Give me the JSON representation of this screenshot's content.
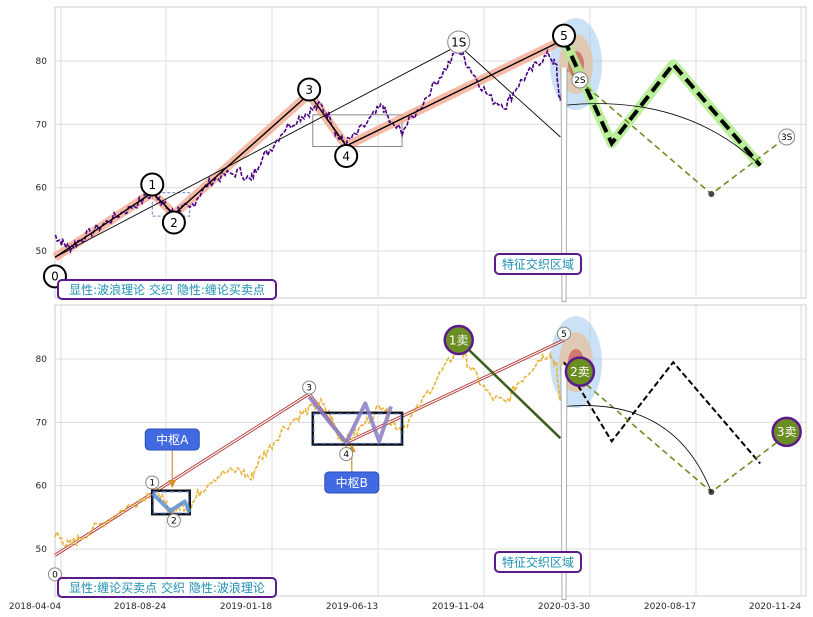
{
  "colors": {
    "price_top": "#4b0082",
    "price_bottom": "#e8b33a",
    "wave_band": "#f3a48a",
    "projection_green": "#b3ee8f",
    "dash_olive": "#6b8e23",
    "purple_border": "#5b1a8c",
    "label_teal": "#1f8fb2",
    "zhongshu_label_bg": "#4169e1",
    "sell_circle": "#6b8e23",
    "target_blue": "#9fc9ee",
    "target_tan": "#e3c3a3",
    "target_red": "#c95454"
  },
  "chart_data": [
    {
      "type": "line",
      "panel": "top",
      "title": "",
      "xlabel": "",
      "ylabel": "",
      "ylim": [
        43,
        88
      ],
      "y_ticks": [
        50,
        60,
        70,
        80
      ],
      "x_tick_labels": [
        "2018-04-04",
        "2018-08-24",
        "2019-01-18",
        "2019-06-13",
        "2019-11-04",
        "2020-03-30",
        "2020-08-17",
        "2020-11-24"
      ],
      "series": [
        {
          "kind": "price",
          "points": [
            [
              "2018-05-01",
              52.5
            ],
            [
              "2018-05-10",
              51.5
            ],
            [
              "2018-05-20",
              50.5
            ],
            [
              "2018-06-01",
              51.5
            ],
            [
              "2018-06-20",
              53
            ],
            [
              "2018-07-10",
              54.5
            ],
            [
              "2018-07-30",
              56
            ],
            [
              "2018-08-20",
              57.5
            ],
            [
              "2018-09-10",
              59
            ],
            [
              "2018-09-20",
              58.5
            ],
            [
              "2018-09-28",
              57
            ],
            [
              "2018-10-10",
              55.8
            ],
            [
              "2018-10-20",
              57
            ],
            [
              "2018-11-01",
              56.5
            ],
            [
              "2018-11-15",
              59
            ],
            [
              "2018-12-01",
              61
            ],
            [
              "2018-12-20",
              62
            ],
            [
              "2019-01-10",
              62.5
            ],
            [
              "2019-01-25",
              61
            ],
            [
              "2019-02-05",
              64
            ],
            [
              "2019-02-20",
              66
            ],
            [
              "2019-03-10",
              69
            ],
            [
              "2019-04-01",
              71
            ],
            [
              "2019-04-15",
              72
            ],
            [
              "2019-05-01",
              73
            ],
            [
              "2019-05-15",
              71
            ],
            [
              "2019-05-25",
              68
            ],
            [
              "2019-06-05",
              67
            ],
            [
              "2019-06-20",
              68.5
            ],
            [
              "2019-07-10",
              71
            ],
            [
              "2019-07-25",
              73
            ],
            [
              "2019-08-05",
              70
            ],
            [
              "2019-08-20",
              69
            ],
            [
              "2019-09-10",
              72
            ],
            [
              "2019-10-01",
              76
            ],
            [
              "2019-10-20",
              79
            ],
            [
              "2019-11-05",
              82
            ],
            [
              "2019-11-15",
              80
            ],
            [
              "2019-12-01",
              77
            ],
            [
              "2019-12-20",
              74
            ],
            [
              "2020-01-10",
              73
            ],
            [
              "2020-01-25",
              76
            ],
            [
              "2020-02-10",
              78
            ],
            [
              "2020-02-25",
              80
            ],
            [
              "2020-03-10",
              81
            ],
            [
              "2020-03-20",
              79
            ],
            [
              "2020-03-25",
              73
            ],
            [
              "2020-03-30",
              78
            ]
          ]
        },
        {
          "kind": "wave",
          "points": [
            [
              "2018-05-01",
              49
            ],
            [
              "2018-09-10",
              59.2
            ],
            [
              "2018-10-10",
              55.8
            ],
            [
              "2019-04-15",
              74.8
            ],
            [
              "2019-06-05",
              66.6
            ],
            [
              "2020-03-30",
              83.4
            ]
          ]
        },
        {
          "kind": "projection",
          "points": [
            [
              "2020-03-30",
              83.4
            ],
            [
              "2020-06-01",
              67
            ],
            [
              "2020-08-20",
              79.5
            ],
            [
              "2020-11-10",
              63.5
            ]
          ]
        },
        {
          "kind": "dashed-olive",
          "points": [
            [
              "2020-03-30",
              79
            ],
            [
              "2020-09-25",
              59
            ],
            [
              "2020-12-05",
              68
            ]
          ]
        },
        {
          "kind": "thin-black",
          "points": [
            [
              "2018-05-01",
              49
            ],
            [
              "2019-11-05",
              82.5
            ],
            [
              "2020-03-25",
              68
            ]
          ]
        }
      ],
      "markers": [
        {
          "label": "0",
          "x": "2018-05-01",
          "y": 46
        },
        {
          "label": "1",
          "x": "2018-09-10",
          "y": 60.5
        },
        {
          "label": "2",
          "x": "2018-10-10",
          "y": 54.5
        },
        {
          "label": "3",
          "x": "2019-04-15",
          "y": 75.5
        },
        {
          "label": "4",
          "x": "2019-06-05",
          "y": 65
        },
        {
          "label": "5",
          "x": "2020-03-30",
          "y": 84
        },
        {
          "label": "1S",
          "x": "2019-11-05",
          "y": 83
        },
        {
          "label": "2S",
          "x": "2020-04-20",
          "y": 77
        },
        {
          "label": "3S",
          "x": "2020-12-05",
          "y": 68
        }
      ],
      "legend_text": "显性:波浪理论 交织 隐性:缠论买卖点",
      "region_label": "特征交织区域"
    },
    {
      "type": "line",
      "panel": "bottom",
      "title": "",
      "xlabel": "",
      "ylabel": "",
      "ylim": [
        43,
        88
      ],
      "y_ticks": [
        50,
        60,
        70,
        80
      ],
      "x_tick_labels": [
        "2018-04-04",
        "2018-08-24",
        "2019-01-18",
        "2019-06-13",
        "2019-11-04",
        "2020-03-30",
        "2020-08-17",
        "2020-11-24"
      ],
      "series": [
        {
          "kind": "price",
          "points": [
            [
              "2018-05-01",
              52.5
            ],
            [
              "2018-05-10",
              51.5
            ],
            [
              "2018-05-20",
              50.5
            ],
            [
              "2018-06-01",
              51.5
            ],
            [
              "2018-06-20",
              53
            ],
            [
              "2018-07-10",
              54.5
            ],
            [
              "2018-07-30",
              56
            ],
            [
              "2018-08-20",
              57.5
            ],
            [
              "2018-09-10",
              59
            ],
            [
              "2018-09-20",
              58.5
            ],
            [
              "2018-09-28",
              57
            ],
            [
              "2018-10-10",
              55.8
            ],
            [
              "2018-10-20",
              57
            ],
            [
              "2018-11-01",
              56.5
            ],
            [
              "2018-11-15",
              59
            ],
            [
              "2018-12-01",
              61
            ],
            [
              "2018-12-20",
              62
            ],
            [
              "2019-01-10",
              62.5
            ],
            [
              "2019-01-25",
              61
            ],
            [
              "2019-02-05",
              64
            ],
            [
              "2019-02-20",
              66
            ],
            [
              "2019-03-10",
              69
            ],
            [
              "2019-04-01",
              71
            ],
            [
              "2019-04-15",
              72
            ],
            [
              "2019-05-01",
              73
            ],
            [
              "2019-05-15",
              71
            ],
            [
              "2019-05-25",
              68
            ],
            [
              "2019-06-05",
              67
            ],
            [
              "2019-06-20",
              68.5
            ],
            [
              "2019-07-10",
              71
            ],
            [
              "2019-07-25",
              73
            ],
            [
              "2019-08-05",
              70
            ],
            [
              "2019-08-20",
              69
            ],
            [
              "2019-09-10",
              72
            ],
            [
              "2019-10-01",
              76
            ],
            [
              "2019-10-20",
              79
            ],
            [
              "2019-11-05",
              82
            ],
            [
              "2019-11-15",
              80
            ],
            [
              "2019-12-01",
              77
            ],
            [
              "2019-12-20",
              74
            ],
            [
              "2020-01-10",
              73
            ],
            [
              "2020-01-25",
              76
            ],
            [
              "2020-02-10",
              78
            ],
            [
              "2020-02-25",
              80
            ],
            [
              "2020-03-10",
              81
            ],
            [
              "2020-03-20",
              79
            ],
            [
              "2020-03-25",
              73
            ],
            [
              "2020-03-30",
              78
            ]
          ]
        },
        {
          "kind": "stroke",
          "points": [
            [
              "2018-05-01",
              49
            ],
            [
              "2019-04-15",
              74.5
            ],
            [
              "2019-06-05",
              66.8
            ],
            [
              "2020-03-30",
              83
            ]
          ]
        },
        {
          "kind": "stroke-dark",
          "points": [
            [
              "2019-11-05",
              83
            ],
            [
              "2020-03-25",
              67.5
            ]
          ]
        },
        {
          "kind": "dashed-black",
          "points": [
            [
              "2020-03-30",
              79.5
            ],
            [
              "2020-06-01",
              67
            ],
            [
              "2020-08-20",
              79.5
            ],
            [
              "2020-11-10",
              63.5
            ]
          ]
        },
        {
          "kind": "dashed-olive",
          "points": [
            [
              "2020-03-30",
              79
            ],
            [
              "2020-09-25",
              59
            ],
            [
              "2020-12-05",
              68
            ]
          ]
        }
      ],
      "zhongshu": [
        {
          "label": "中枢A",
          "x_range": [
            "2018-09-10",
            "2018-11-01"
          ],
          "y_range": [
            55.5,
            59.2
          ]
        },
        {
          "label": "中枢B",
          "x_range": [
            "2019-04-20",
            "2019-08-20"
          ],
          "y_range": [
            66.5,
            71.5
          ]
        }
      ],
      "markers": [
        {
          "label": "0",
          "x": "2018-05-01",
          "y": 46
        },
        {
          "label": "1",
          "x": "2018-09-10",
          "y": 60.5
        },
        {
          "label": "2",
          "x": "2018-10-10",
          "y": 54.5
        },
        {
          "label": "3",
          "x": "2019-04-15",
          "y": 75.5
        },
        {
          "label": "4",
          "x": "2019-06-05",
          "y": 65
        },
        {
          "label": "5",
          "x": "2020-03-30",
          "y": 84
        }
      ],
      "sell_points": [
        {
          "label": "1卖",
          "x": "2019-11-05",
          "y": 83
        },
        {
          "label": "2卖",
          "x": "2020-04-20",
          "y": 78
        },
        {
          "label": "3卖",
          "x": "2020-12-05",
          "y": 68.5
        }
      ],
      "legend_text": "显性:缠论买卖点 交织 隐性:波浪理论",
      "region_label": "特征交织区域"
    }
  ]
}
